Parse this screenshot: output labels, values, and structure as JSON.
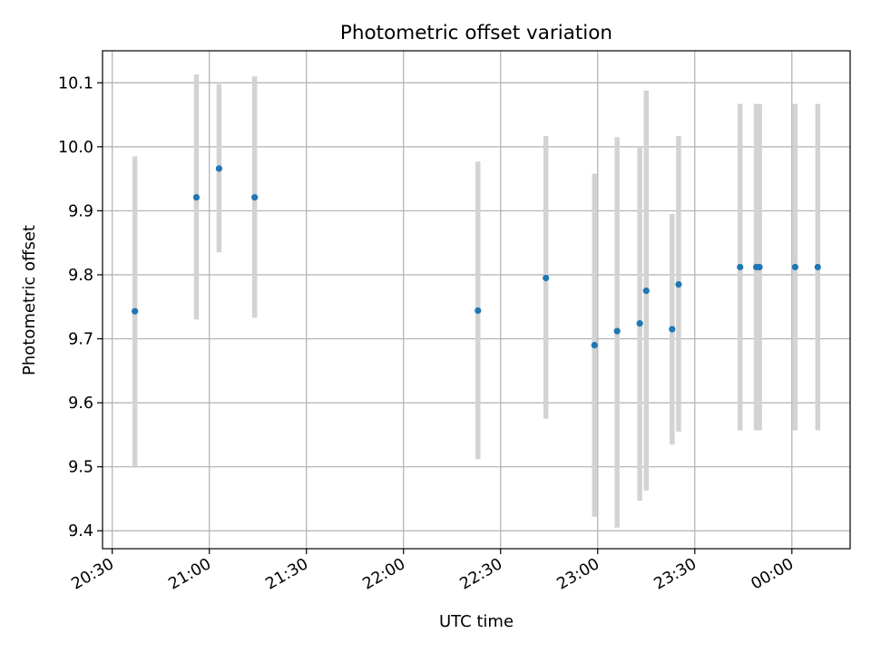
{
  "chart_data": {
    "type": "scatter",
    "title": "Photometric offset variation",
    "xlabel": "UTC time",
    "ylabel": "Photometric offset",
    "x_ticks": [
      "20:30",
      "21:00",
      "21:30",
      "22:00",
      "22:30",
      "23:00",
      "23:30",
      "00:00"
    ],
    "y_ticks": [
      "9.4",
      "9.5",
      "9.6",
      "9.7",
      "9.8",
      "9.9",
      "10.0",
      "10.1"
    ],
    "xlim": [
      "20:27",
      "00:18"
    ],
    "ylim": [
      9.372,
      10.15
    ],
    "grid": true,
    "colors": {
      "point": "#1f77b4",
      "errorbar": "#d3d3d3",
      "grid": "#b0b0b0"
    },
    "points": [
      {
        "time": "20:37",
        "y": 9.743,
        "y_low": 9.5,
        "y_high": 9.985
      },
      {
        "time": "20:56",
        "y": 9.921,
        "y_low": 9.73,
        "y_high": 10.113
      },
      {
        "time": "21:03",
        "y": 9.966,
        "y_low": 9.835,
        "y_high": 10.098
      },
      {
        "time": "21:14",
        "y": 9.921,
        "y_low": 9.733,
        "y_high": 10.11
      },
      {
        "time": "22:23",
        "y": 9.744,
        "y_low": 9.512,
        "y_high": 9.977
      },
      {
        "time": "22:44",
        "y": 9.795,
        "y_low": 9.575,
        "y_high": 10.017
      },
      {
        "time": "22:59",
        "y": 9.69,
        "y_low": 9.422,
        "y_high": 9.958
      },
      {
        "time": "23:06",
        "y": 9.712,
        "y_low": 9.405,
        "y_high": 10.015
      },
      {
        "time": "23:13",
        "y": 9.724,
        "y_low": 9.447,
        "y_high": 10.0
      },
      {
        "time": "23:15",
        "y": 9.775,
        "y_low": 9.463,
        "y_high": 10.088
      },
      {
        "time": "23:23",
        "y": 9.715,
        "y_low": 9.535,
        "y_high": 9.895
      },
      {
        "time": "23:25",
        "y": 9.785,
        "y_low": 9.555,
        "y_high": 10.017
      },
      {
        "time": "23:44",
        "y": 9.812,
        "y_low": 9.557,
        "y_high": 10.067
      },
      {
        "time": "23:49",
        "y": 9.812,
        "y_low": 9.557,
        "y_high": 10.067
      },
      {
        "time": "23:50",
        "y": 9.812,
        "y_low": 9.557,
        "y_high": 10.067
      },
      {
        "time": "00:01",
        "y": 9.812,
        "y_low": 9.557,
        "y_high": 10.067
      },
      {
        "time": "00:08",
        "y": 9.812,
        "y_low": 9.557,
        "y_high": 10.067
      }
    ]
  }
}
